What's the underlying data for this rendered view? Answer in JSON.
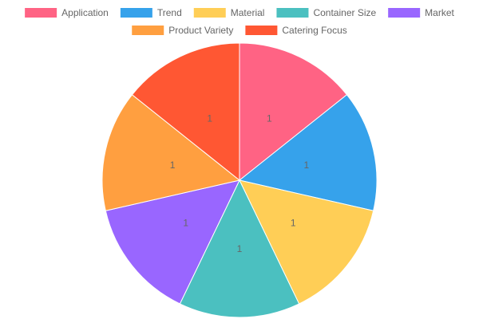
{
  "chart_data": {
    "type": "pie",
    "title": "",
    "legend_position": "top",
    "slices": [
      {
        "label": "Application",
        "value": 1,
        "color": "#ff6384"
      },
      {
        "label": "Trend",
        "value": 1,
        "color": "#36a2eb"
      },
      {
        "label": "Material",
        "value": 1,
        "color": "#ffce56"
      },
      {
        "label": "Container Size",
        "value": 1,
        "color": "#4bc0c0"
      },
      {
        "label": "Market",
        "value": 1,
        "color": "#9966ff"
      },
      {
        "label": "Product Variety",
        "value": 1,
        "color": "#ff9f40"
      },
      {
        "label": "Catering Focus",
        "value": 1,
        "color": "#ff5733"
      }
    ]
  }
}
